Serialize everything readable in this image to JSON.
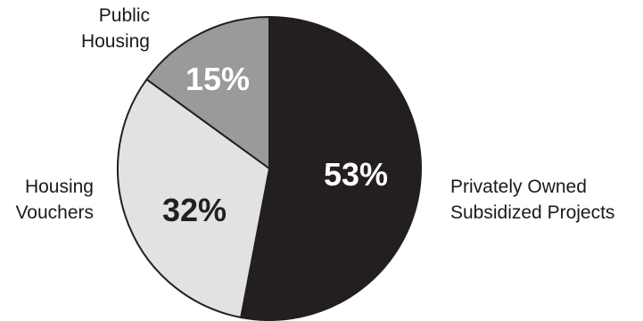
{
  "chart_data": {
    "type": "pie",
    "categories": [
      "Privately Owned Subsidized Projects",
      "Housing Vouchers",
      "Public Housing"
    ],
    "values": [
      53,
      32,
      15
    ],
    "value_labels": [
      "53%",
      "32%",
      "15%"
    ],
    "label_lines": [
      [
        "Privately Owned",
        "Subsidized Projects"
      ],
      [
        "Housing",
        "Vouchers"
      ],
      [
        "Public",
        "Housing"
      ]
    ],
    "colors": [
      "#231f20",
      "#e2e2e2",
      "#9a9a9a"
    ],
    "label_colors": [
      "#ffffff",
      "#231f20",
      "#ffffff"
    ],
    "edge_color": "#231f20",
    "start_angle_deg": 0,
    "direction": "clockwise",
    "title": "",
    "legend": "none"
  }
}
